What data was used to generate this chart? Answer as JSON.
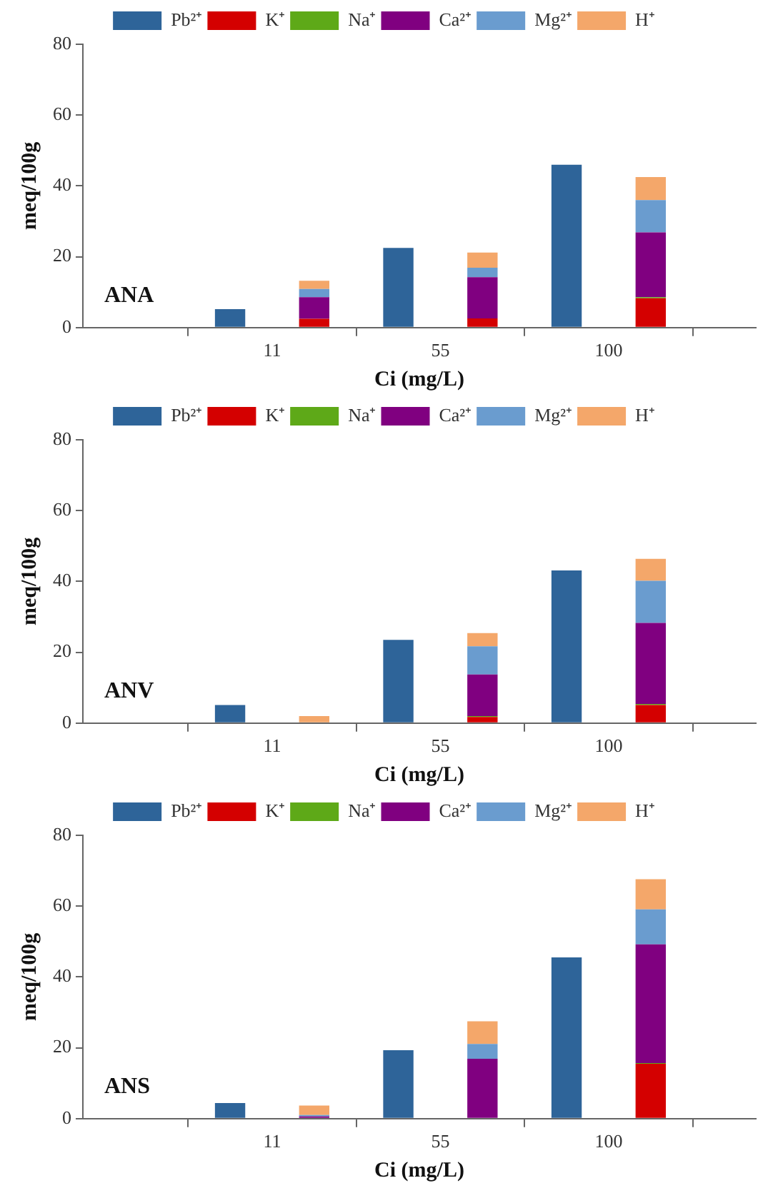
{
  "chart_data": [
    {
      "type": "bar",
      "stacked": true,
      "xlabel": "Ci (mg/L)",
      "ylabel": "meq/100g",
      "annotations": [
        "ANA"
      ],
      "categories": [
        null,
        null,
        null,
        null,
        "11",
        null,
        null,
        null,
        "55",
        null,
        null,
        null,
        "100",
        null,
        null,
        null
      ],
      "ylim": [
        0,
        80
      ],
      "yticks": [
        0,
        20,
        40,
        60,
        80
      ],
      "grid": false,
      "legend": "top",
      "series": [
        {
          "name": "Pb²⁺",
          "color": "#2e6499",
          "values": [
            null,
            null,
            null,
            5.2,
            null,
            null,
            null,
            22.5,
            null,
            null,
            null,
            46,
            null,
            null,
            null,
            null
          ]
        },
        {
          "name": "K⁺",
          "color": "#d40000",
          "values": [
            null,
            null,
            null,
            null,
            null,
            2.5,
            null,
            null,
            null,
            2.6,
            null,
            null,
            null,
            8.3,
            null,
            null
          ]
        },
        {
          "name": "Na⁺",
          "color": "#5ea918",
          "values": [
            null,
            null,
            null,
            null,
            null,
            0,
            null,
            null,
            null,
            0,
            null,
            null,
            null,
            0.3,
            null,
            null
          ]
        },
        {
          "name": "Ca²⁺",
          "color": "#800080",
          "values": [
            null,
            null,
            null,
            null,
            null,
            6.1,
            null,
            null,
            null,
            11.6,
            null,
            null,
            null,
            18.3,
            null,
            null
          ]
        },
        {
          "name": "Mg²⁺",
          "color": "#6a9ccf",
          "values": [
            null,
            null,
            null,
            null,
            null,
            2.3,
            null,
            null,
            null,
            2.7,
            null,
            null,
            null,
            9.1,
            null,
            null
          ]
        },
        {
          "name": "H⁺",
          "color": "#f4a76a",
          "values": [
            null,
            null,
            null,
            null,
            null,
            2.3,
            null,
            null,
            null,
            4.3,
            null,
            null,
            null,
            6.5,
            null,
            null
          ]
        }
      ]
    },
    {
      "type": "bar",
      "stacked": true,
      "xlabel": "Ci (mg/L)",
      "ylabel": "meq/100g",
      "annotations": [
        "ANV"
      ],
      "categories": [
        null,
        null,
        null,
        null,
        "11",
        null,
        null,
        null,
        "55",
        null,
        null,
        null,
        "100",
        null,
        null,
        null
      ],
      "ylim": [
        0,
        80
      ],
      "yticks": [
        0,
        20,
        40,
        60,
        80
      ],
      "grid": false,
      "legend": "top",
      "series": [
        {
          "name": "Pb²⁺",
          "color": "#2e6499",
          "values": [
            null,
            null,
            null,
            5.1,
            null,
            null,
            null,
            23.5,
            null,
            null,
            null,
            43.1,
            null,
            null,
            null,
            null
          ]
        },
        {
          "name": "K⁺",
          "color": "#d40000",
          "values": [
            null,
            null,
            null,
            null,
            null,
            0,
            null,
            null,
            null,
            1.7,
            null,
            null,
            null,
            5.1,
            null,
            null
          ]
        },
        {
          "name": "Na⁺",
          "color": "#5ea918",
          "values": [
            null,
            null,
            null,
            null,
            null,
            0,
            null,
            null,
            null,
            0.3,
            null,
            null,
            null,
            0.3,
            null,
            null
          ]
        },
        {
          "name": "Ca²⁺",
          "color": "#800080",
          "values": [
            null,
            null,
            null,
            null,
            null,
            0,
            null,
            null,
            null,
            11.7,
            null,
            null,
            null,
            22.9,
            null,
            null
          ]
        },
        {
          "name": "Mg²⁺",
          "color": "#6a9ccf",
          "values": [
            null,
            null,
            null,
            null,
            null,
            0,
            null,
            null,
            null,
            8.0,
            null,
            null,
            null,
            11.9,
            null,
            null
          ]
        },
        {
          "name": "H⁺",
          "color": "#f4a76a",
          "values": [
            null,
            null,
            null,
            null,
            null,
            2.0,
            null,
            null,
            null,
            3.7,
            null,
            null,
            null,
            6.2,
            null,
            null
          ]
        }
      ]
    },
    {
      "type": "bar",
      "stacked": true,
      "xlabel": "Ci (mg/L)",
      "ylabel": "meq/100g",
      "annotations": [
        "ANS"
      ],
      "categories": [
        null,
        null,
        null,
        null,
        "11",
        null,
        null,
        null,
        "55",
        null,
        null,
        null,
        "100",
        null,
        null,
        null
      ],
      "ylim": [
        0,
        80
      ],
      "yticks": [
        0,
        20,
        40,
        60,
        80
      ],
      "grid": false,
      "legend": "top",
      "series": [
        {
          "name": "Pb²⁺",
          "color": "#2e6499",
          "values": [
            null,
            null,
            null,
            4.4,
            null,
            null,
            null,
            19.3,
            null,
            null,
            null,
            45.5,
            null,
            null,
            null,
            null
          ]
        },
        {
          "name": "K⁺",
          "color": "#d40000",
          "values": [
            null,
            null,
            null,
            null,
            null,
            0,
            null,
            null,
            null,
            0.2,
            null,
            null,
            null,
            15.5,
            null,
            null
          ]
        },
        {
          "name": "Na⁺",
          "color": "#5ea918",
          "values": [
            null,
            null,
            null,
            null,
            null,
            0,
            null,
            null,
            null,
            0,
            null,
            null,
            null,
            0.2,
            null,
            null
          ]
        },
        {
          "name": "Ca²⁺",
          "color": "#800080",
          "values": [
            null,
            null,
            null,
            null,
            null,
            0.6,
            null,
            null,
            null,
            16.7,
            null,
            null,
            null,
            33.5,
            null,
            null
          ]
        },
        {
          "name": "Mg²⁺",
          "color": "#6a9ccf",
          "values": [
            null,
            null,
            null,
            null,
            null,
            0.4,
            null,
            null,
            null,
            4.2,
            null,
            null,
            null,
            9.9,
            null,
            null
          ]
        },
        {
          "name": "H⁺",
          "color": "#f4a76a",
          "values": [
            null,
            null,
            null,
            null,
            null,
            2.7,
            null,
            null,
            null,
            6.4,
            null,
            null,
            null,
            8.5,
            null,
            null
          ]
        }
      ]
    }
  ]
}
